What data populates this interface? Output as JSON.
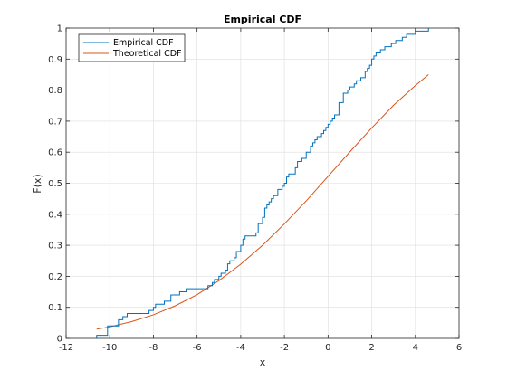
{
  "chart_data": {
    "type": "line",
    "title": "Empirical CDF",
    "xlabel": "x",
    "ylabel": "F(x)",
    "xlim": [
      -12,
      6
    ],
    "ylim": [
      0,
      1
    ],
    "xticks": [
      -12,
      -10,
      -8,
      -6,
      -4,
      -2,
      0,
      2,
      4,
      6
    ],
    "xtick_labels": [
      "-12",
      "-10",
      "-8",
      "-6",
      "-4",
      "-2",
      "0",
      "2",
      "4",
      "6"
    ],
    "yticks": [
      0,
      0.1,
      0.2,
      0.3,
      0.4,
      0.5,
      0.6,
      0.7,
      0.8,
      0.9,
      1
    ],
    "ytick_labels": [
      "0",
      "0.1",
      "0.2",
      "0.3",
      "0.4",
      "0.5",
      "0.6",
      "0.7",
      "0.8",
      "0.9",
      "1"
    ],
    "grid": true,
    "legend_position": "top-left",
    "series": [
      {
        "name": "Empirical CDF",
        "color": "#0072BD",
        "style": "stairs",
        "x": [
          -10.6,
          -10.1,
          -9.6,
          -9.4,
          -9.2,
          -8.9,
          -8.2,
          -8.0,
          -7.9,
          -7.5,
          -7.2,
          -6.8,
          -6.5,
          -6.3,
          -5.5,
          -5.3,
          -5.2,
          -5.0,
          -4.9,
          -4.7,
          -4.6,
          -4.5,
          -4.3,
          -4.2,
          -4.0,
          -3.9,
          -3.8,
          -3.7,
          -3.3,
          -3.2,
          -3.0,
          -2.9,
          -2.8,
          -2.7,
          -2.6,
          -2.5,
          -2.3,
          -2.1,
          -2.0,
          -1.9,
          -1.8,
          -1.5,
          -1.4,
          -1.2,
          -1.0,
          -0.8,
          -0.7,
          -0.6,
          -0.5,
          -0.3,
          -0.2,
          -0.1,
          0.0,
          0.1,
          0.2,
          0.3,
          0.5,
          0.7,
          0.9,
          1.0,
          1.2,
          1.3,
          1.5,
          1.7,
          1.8,
          1.9,
          2.0,
          2.1,
          2.2,
          2.4,
          2.6,
          2.9,
          3.1,
          3.4,
          3.6,
          4.0,
          4.6
        ],
        "y": [
          0.01,
          0.04,
          0.06,
          0.07,
          0.08,
          0.08,
          0.09,
          0.1,
          0.11,
          0.12,
          0.14,
          0.15,
          0.16,
          0.16,
          0.17,
          0.18,
          0.19,
          0.2,
          0.21,
          0.22,
          0.24,
          0.25,
          0.26,
          0.28,
          0.3,
          0.32,
          0.33,
          0.33,
          0.34,
          0.37,
          0.39,
          0.42,
          0.43,
          0.44,
          0.45,
          0.46,
          0.48,
          0.49,
          0.5,
          0.52,
          0.53,
          0.55,
          0.57,
          0.58,
          0.6,
          0.62,
          0.63,
          0.64,
          0.65,
          0.66,
          0.67,
          0.68,
          0.69,
          0.7,
          0.71,
          0.72,
          0.76,
          0.79,
          0.8,
          0.81,
          0.82,
          0.83,
          0.84,
          0.86,
          0.87,
          0.88,
          0.9,
          0.91,
          0.92,
          0.93,
          0.94,
          0.95,
          0.96,
          0.97,
          0.98,
          0.99,
          1.0
        ]
      },
      {
        "name": "Theoretical CDF",
        "color": "#D95319",
        "style": "smooth",
        "x": [
          -10.6,
          -10,
          -9,
          -8,
          -7,
          -6,
          -5,
          -4,
          -3,
          -2,
          -1,
          0,
          1,
          2,
          3,
          4,
          4.6
        ],
        "y": [
          0.03,
          0.037,
          0.054,
          0.076,
          0.105,
          0.141,
          0.186,
          0.239,
          0.3,
          0.369,
          0.443,
          0.522,
          0.601,
          0.678,
          0.751,
          0.815,
          0.85
        ]
      }
    ]
  }
}
